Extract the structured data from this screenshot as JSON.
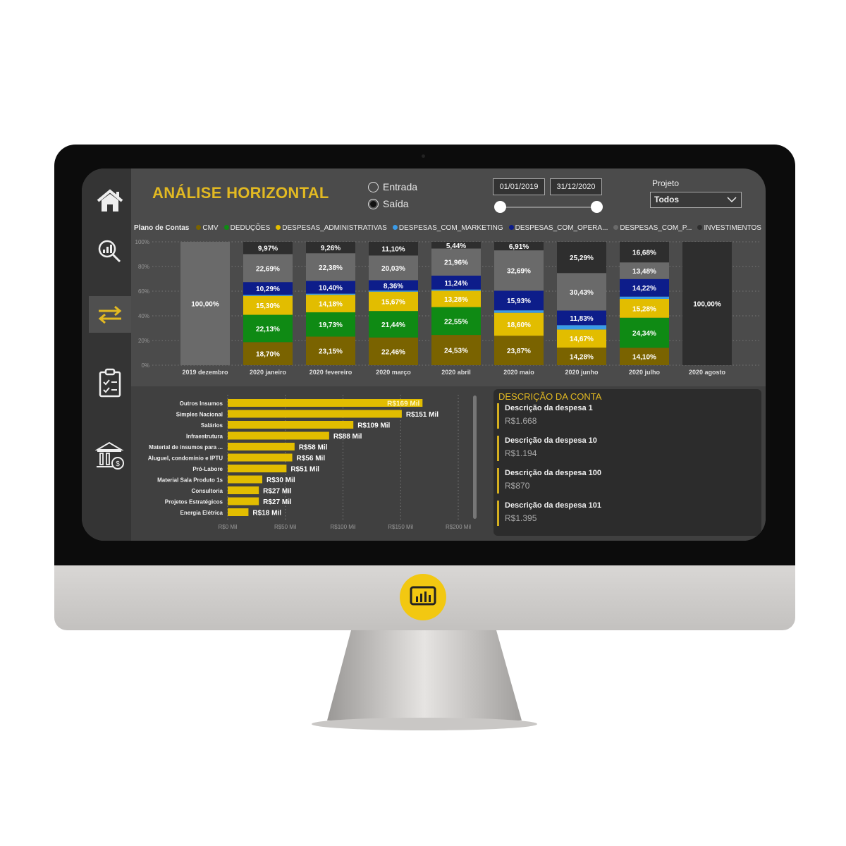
{
  "header": {
    "title": "ANÁLISE HORIZONTAL"
  },
  "sidebar": {
    "items": [
      {
        "icon": "home-icon"
      },
      {
        "icon": "search-chart-icon"
      },
      {
        "icon": "transfer-arrows-icon",
        "active": true
      },
      {
        "icon": "clipboard-checklist-icon"
      },
      {
        "icon": "bank-money-icon"
      }
    ]
  },
  "filters": {
    "radio": [
      {
        "label": "Entrada",
        "selected": false
      },
      {
        "label": "Saída",
        "selected": true
      }
    ],
    "date_start": "01/01/2019",
    "date_end": "31/12/2020",
    "project_label": "Projeto",
    "project_value": "Todos"
  },
  "colors": {
    "accent": "#e2b922",
    "background": "#4b4b4b",
    "sidebar": "#343434"
  },
  "chart_data": [
    {
      "type": "bar",
      "stacked": true,
      "percent": true,
      "legend_title": "Plano de Contas",
      "legend_position": "top",
      "categories": [
        "2019 dezembro",
        "2020 janeiro",
        "2020 fevereiro",
        "2020 março",
        "2020 abril",
        "2020 maio",
        "2020 junho",
        "2020 julho",
        "2020 agosto"
      ],
      "yticks": [
        "0%",
        "20%",
        "40%",
        "60%",
        "80%",
        "100%"
      ],
      "ylim": [
        0,
        100
      ],
      "grid": true,
      "series": [
        {
          "name": "CMV",
          "color": "#7a6300",
          "values": [
            0,
            18.7,
            23.15,
            22.46,
            24.53,
            23.87,
            14.28,
            14.1,
            0
          ]
        },
        {
          "name": "DEDUÇÕES",
          "color": "#0f8a14",
          "values": [
            0,
            22.13,
            19.73,
            21.44,
            22.55,
            0,
            0,
            24.34,
            0
          ]
        },
        {
          "name": "DESPESAS_ADMINISTRATIVAS",
          "color": "#e2bd00",
          "values": [
            0,
            15.3,
            14.18,
            15.67,
            13.28,
            18.6,
            14.67,
            15.28,
            0
          ]
        },
        {
          "name": "DESPESAS_COM_MARKETING",
          "color": "#3a9be8",
          "values": [
            0,
            0.92,
            0.9,
            0.94,
            1.0,
            2.0,
            3.5,
            1.9,
            0
          ]
        },
        {
          "name": "DESPESAS_COM_OPERA...",
          "color": "#0d1d8a",
          "values": [
            0,
            10.29,
            10.4,
            8.36,
            11.24,
            15.93,
            11.83,
            14.22,
            0
          ]
        },
        {
          "name": "DESPESAS_COM_P...",
          "color": "#6a6a6a",
          "values": [
            100,
            22.69,
            22.38,
            20.03,
            21.96,
            32.69,
            30.43,
            13.48,
            0
          ]
        },
        {
          "name": "INVESTIMENTOS",
          "color": "#2e2e2e",
          "values": [
            0,
            9.97,
            9.26,
            11.1,
            5.44,
            6.91,
            25.29,
            16.68,
            100
          ]
        }
      ]
    },
    {
      "type": "bar",
      "orientation": "horizontal",
      "categories": [
        "Outros Insumos",
        "Simples Nacional",
        "Salários",
        "Infraestrutura",
        "Material de insumos para ...",
        "Aluguel, condomínio e IPTU",
        "Pró-Labore",
        "Material Sala Produto 1s",
        "Consultoria",
        "Projetos Estratégicos",
        "Energia Elétrica"
      ],
      "values": [
        169,
        151,
        109,
        88,
        58,
        56,
        51,
        30,
        27,
        27,
        18
      ],
      "labels": [
        "R$169 Mil",
        "R$151 Mil",
        "R$109 Mil",
        "R$88 Mil",
        "R$58 Mil",
        "R$56 Mil",
        "R$51 Mil",
        "R$30 Mil",
        "R$27 Mil",
        "R$27 Mil",
        "R$18 Mil"
      ],
      "xticks": [
        "R$0 Mil",
        "R$50 Mil",
        "R$100 Mil",
        "R$150 Mil",
        "R$200 Mil"
      ],
      "xlim": [
        0,
        200
      ],
      "color": "#e2bd00",
      "grid": true
    }
  ],
  "description_panel": {
    "title": "DESCRIÇÃO DA CONTA",
    "items": [
      {
        "name": "Descrição da despesa 1",
        "value": "R$1.668"
      },
      {
        "name": "Descrição da despesa 10",
        "value": "R$1.194"
      },
      {
        "name": "Descrição da despesa 100",
        "value": "R$870"
      },
      {
        "name": "Descrição da despesa 101",
        "value": "R$1.395"
      }
    ]
  }
}
